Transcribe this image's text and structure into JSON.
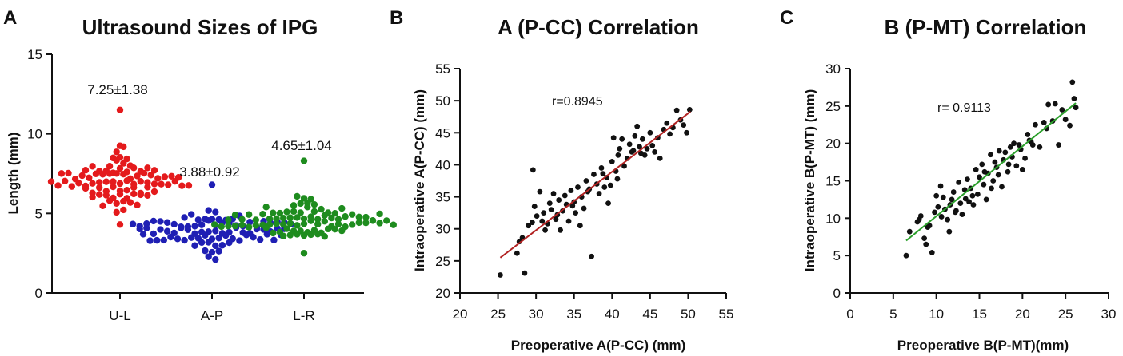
{
  "panels": [
    "A",
    "B",
    "C"
  ],
  "chart_data": [
    {
      "type": "scatter",
      "subtype": "beeswarm",
      "title": "Ultrasound Sizes of IPG",
      "xlabel": "",
      "ylabel": "Length (mm)",
      "ylim": [
        0,
        15
      ],
      "yticks": [
        0,
        5,
        10,
        15
      ],
      "categories": [
        "U-L",
        "A-P",
        "L-R"
      ],
      "series": [
        {
          "name": "U-L",
          "color": "#e41a1c",
          "mean": 7.25,
          "sd": 1.38,
          "label": "7.25±1.38",
          "n": 90,
          "min": 4.3,
          "max": 11.5
        },
        {
          "name": "A-P",
          "color": "#1f1fb4",
          "mean": 3.88,
          "sd": 0.92,
          "label": "3.88±0.92",
          "n": 90,
          "min": 2.1,
          "max": 6.8
        },
        {
          "name": "L-R",
          "color": "#1e8c1e",
          "mean": 4.65,
          "sd": 1.04,
          "label": "4.65±1.04",
          "n": 90,
          "min": 2.5,
          "max": 8.3
        }
      ]
    },
    {
      "type": "scatter",
      "title": "A (P-CC) Correlation",
      "xlabel": "Preoperative A(P-CC) (mm)",
      "ylabel": "Intraoperative A(P-CC) (mm)",
      "xlim": [
        20,
        55
      ],
      "ylim": [
        20,
        55
      ],
      "xticks": [
        20,
        25,
        30,
        35,
        40,
        45,
        50,
        55
      ],
      "yticks": [
        20,
        25,
        30,
        35,
        40,
        45,
        50,
        55
      ],
      "annotation": "r=0.8945",
      "fit": {
        "color": "#b22222",
        "x": [
          25.3,
          50.3
        ],
        "y": [
          25.5,
          48.3
        ]
      },
      "points": [
        [
          25.3,
          22.8
        ],
        [
          28.5,
          23.1
        ],
        [
          27.5,
          26.2
        ],
        [
          28.2,
          28.6
        ],
        [
          27.8,
          28.0
        ],
        [
          29.0,
          30.5
        ],
        [
          29.5,
          31.0
        ],
        [
          29.8,
          33.5
        ],
        [
          29.6,
          39.2
        ],
        [
          30.1,
          32.0
        ],
        [
          30.5,
          35.8
        ],
        [
          31.0,
          32.5
        ],
        [
          31.5,
          30.8
        ],
        [
          31.8,
          34.0
        ],
        [
          32.0,
          33.0
        ],
        [
          32.3,
          35.5
        ],
        [
          32.6,
          31.5
        ],
        [
          33.0,
          34.5
        ],
        [
          33.2,
          29.8
        ],
        [
          33.5,
          32.8
        ],
        [
          33.8,
          35.2
        ],
        [
          34.0,
          33.8
        ],
        [
          34.3,
          31.2
        ],
        [
          34.6,
          36.0
        ],
        [
          35.0,
          34.2
        ],
        [
          35.2,
          32.5
        ],
        [
          35.5,
          36.5
        ],
        [
          35.8,
          30.5
        ],
        [
          36.0,
          35.0
        ],
        [
          36.3,
          33.2
        ],
        [
          36.6,
          37.5
        ],
        [
          37.0,
          36.2
        ],
        [
          37.3,
          25.7
        ],
        [
          37.6,
          38.5
        ],
        [
          38.0,
          37.0
        ],
        [
          38.3,
          35.5
        ],
        [
          38.6,
          39.5
        ],
        [
          39.0,
          36.5
        ],
        [
          39.3,
          38.0
        ],
        [
          39.5,
          34.0
        ],
        [
          39.8,
          36.8
        ],
        [
          40.0,
          40.5
        ],
        [
          40.2,
          44.2
        ],
        [
          40.5,
          39.0
        ],
        [
          40.8,
          41.5
        ],
        [
          41.0,
          42.5
        ],
        [
          41.3,
          44.0
        ],
        [
          41.6,
          39.8
        ],
        [
          42.0,
          41.0
        ],
        [
          42.3,
          43.2
        ],
        [
          42.6,
          42.0
        ],
        [
          43.0,
          44.5
        ],
        [
          43.3,
          46.0
        ],
        [
          43.6,
          42.8
        ],
        [
          44.0,
          44.0
        ],
        [
          44.3,
          41.5
        ],
        [
          44.6,
          42.5
        ],
        [
          45.0,
          45.0
        ],
        [
          45.3,
          43.0
        ],
        [
          45.6,
          42.0
        ],
        [
          46.0,
          44.2
        ],
        [
          46.3,
          41.0
        ],
        [
          46.8,
          45.5
        ],
        [
          47.2,
          46.5
        ],
        [
          47.6,
          44.8
        ],
        [
          48.0,
          45.8
        ],
        [
          48.5,
          48.5
        ],
        [
          49.0,
          47.0
        ],
        [
          49.4,
          46.2
        ],
        [
          49.8,
          45.0
        ],
        [
          50.2,
          48.6
        ],
        [
          43.8,
          41.8
        ],
        [
          42.8,
          42.2
        ],
        [
          40.7,
          37.8
        ],
        [
          38.8,
          38.6
        ],
        [
          36.8,
          35.8
        ],
        [
          34.8,
          33.6
        ],
        [
          32.8,
          32.2
        ],
        [
          31.2,
          29.8
        ],
        [
          30.8,
          31.2
        ]
      ]
    },
    {
      "type": "scatter",
      "title": "B (P-MT) Correlation",
      "xlabel": "Preoperative B(P-MT)(mm)",
      "ylabel": "Intraoperative B(P-MT) (mm)",
      "xlim": [
        0,
        30
      ],
      "ylim": [
        0,
        30
      ],
      "xticks": [
        0,
        5,
        10,
        15,
        20,
        25,
        30
      ],
      "yticks": [
        0,
        5,
        10,
        15,
        20,
        25,
        30
      ],
      "annotation": "r= 0.9113",
      "fit": {
        "color": "#2ca02c",
        "x": [
          6.5,
          26.2
        ],
        "y": [
          7.0,
          25.4
        ]
      },
      "points": [
        [
          6.5,
          5.0
        ],
        [
          6.9,
          8.2
        ],
        [
          7.8,
          9.5
        ],
        [
          8.2,
          10.3
        ],
        [
          8.6,
          7.3
        ],
        [
          8.8,
          6.5
        ],
        [
          9.2,
          9.0
        ],
        [
          9.5,
          5.4
        ],
        [
          9.8,
          10.8
        ],
        [
          10.0,
          13.0
        ],
        [
          10.2,
          11.5
        ],
        [
          10.5,
          14.3
        ],
        [
          10.8,
          12.8
        ],
        [
          11.0,
          11.2
        ],
        [
          11.3,
          9.8
        ],
        [
          11.5,
          8.2
        ],
        [
          11.8,
          12.5
        ],
        [
          12.0,
          13.5
        ],
        [
          12.3,
          11.0
        ],
        [
          12.6,
          14.8
        ],
        [
          12.8,
          12.0
        ],
        [
          13.0,
          10.5
        ],
        [
          13.3,
          13.8
        ],
        [
          13.6,
          15.2
        ],
        [
          13.8,
          12.2
        ],
        [
          14.0,
          14.0
        ],
        [
          14.3,
          11.8
        ],
        [
          14.6,
          16.5
        ],
        [
          14.8,
          13.2
        ],
        [
          15.0,
          15.5
        ],
        [
          15.3,
          17.2
        ],
        [
          15.5,
          14.5
        ],
        [
          15.8,
          12.5
        ],
        [
          16.0,
          16.0
        ],
        [
          16.3,
          18.5
        ],
        [
          16.6,
          15.0
        ],
        [
          16.8,
          17.5
        ],
        [
          17.0,
          16.8
        ],
        [
          17.3,
          19.0
        ],
        [
          17.6,
          14.2
        ],
        [
          17.8,
          17.8
        ],
        [
          18.0,
          18.8
        ],
        [
          18.3,
          16.2
        ],
        [
          18.6,
          19.5
        ],
        [
          18.8,
          18.2
        ],
        [
          19.0,
          20.0
        ],
        [
          19.3,
          17.0
        ],
        [
          19.6,
          19.8
        ],
        [
          20.0,
          16.5
        ],
        [
          20.3,
          18.0
        ],
        [
          20.6,
          21.2
        ],
        [
          21.0,
          20.2
        ],
        [
          21.5,
          22.5
        ],
        [
          22.0,
          19.5
        ],
        [
          22.5,
          22.8
        ],
        [
          23.0,
          25.2
        ],
        [
          23.5,
          23.0
        ],
        [
          23.8,
          25.3
        ],
        [
          24.2,
          19.8
        ],
        [
          24.6,
          24.5
        ],
        [
          25.0,
          23.2
        ],
        [
          25.5,
          22.4
        ],
        [
          25.8,
          28.2
        ],
        [
          26.0,
          26.0
        ],
        [
          26.2,
          24.8
        ],
        [
          14.2,
          13.0
        ],
        [
          12.2,
          10.8
        ],
        [
          16.4,
          14.0
        ],
        [
          18.4,
          17.2
        ],
        [
          10.6,
          10.2
        ],
        [
          15.6,
          16.2
        ],
        [
          13.4,
          12.6
        ],
        [
          19.8,
          19.2
        ],
        [
          21.2,
          19.8
        ],
        [
          9.0,
          8.8
        ],
        [
          11.6,
          11.8
        ],
        [
          17.2,
          15.8
        ],
        [
          22.8,
          22.0
        ],
        [
          8.0,
          9.8
        ],
        [
          20.8,
          20.4
        ]
      ]
    }
  ]
}
